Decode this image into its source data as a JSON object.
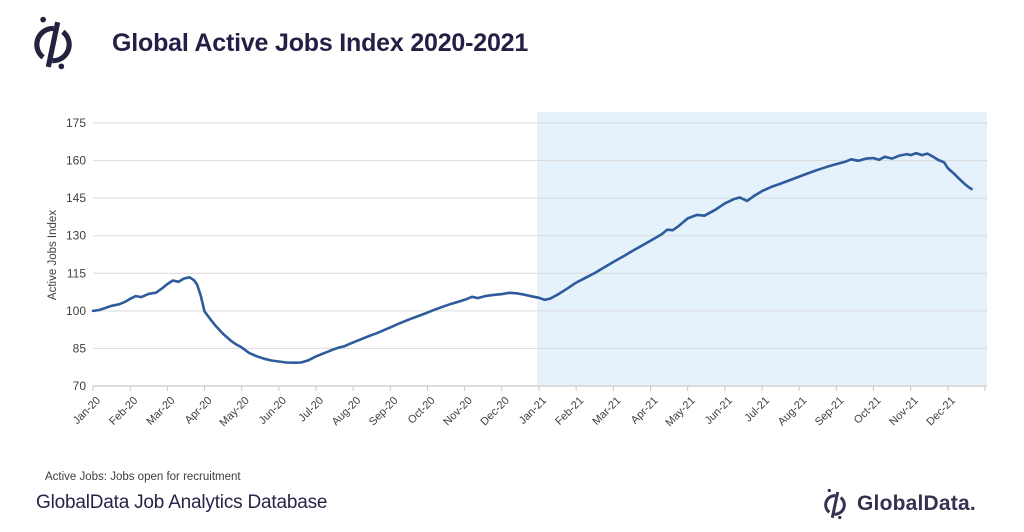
{
  "header": {
    "title": "Global Active Jobs Index 2020-2021"
  },
  "footer": {
    "note": "Active Jobs: Jobs open for recruitment",
    "source": "GlobalData Job Analytics Database",
    "brand": "GlobalData."
  },
  "icons": {
    "header_logo": "globaldata-compass-icon",
    "footer_logo": "globaldata-compass-icon"
  },
  "colors": {
    "line": "#2e5b9c",
    "highlight": "#e5f2fb",
    "grid": "#d9d9d9",
    "axis": "#c6c6c6",
    "axis_text": "#3f3f3f",
    "title_text": "#241f45",
    "brand_text": "#343250"
  },
  "chart_data": {
    "type": "line",
    "title": "Global Active Jobs Index 2020-2021",
    "xlabel": "",
    "ylabel": "Active Jobs Index",
    "ylim": [
      70,
      175
    ],
    "yticks": [
      70,
      85,
      100,
      115,
      130,
      145,
      160,
      175
    ],
    "grid": "horizontal",
    "legend": "none",
    "categories": [
      "Jan-20",
      "Feb-20",
      "Mar-20",
      "Apr-20",
      "May-20",
      "Jun-20",
      "Jul-20",
      "Aug-20",
      "Sep-20",
      "Oct-20",
      "Nov-20",
      "Dec-20",
      "Jan-21",
      "Feb-21",
      "Mar-21",
      "Apr-21",
      "May-21",
      "Jun-21",
      "Jul-21",
      "Aug-21",
      "Sep-21",
      "Oct-21",
      "Nov-21",
      "Dec-21"
    ],
    "highlight_region": {
      "from_month": 12,
      "to_month": 24,
      "color": "#e5f2fb"
    },
    "monthly_values": {
      "Jan-20": 100,
      "Feb-20": 105,
      "Mar-20": 111,
      "Apr-20": 100,
      "May-20": 85,
      "Jun-20": 80,
      "Jul-20": 82,
      "Aug-20": 87,
      "Sep-20": 93,
      "Oct-20": 99,
      "Nov-20": 104,
      "Dec-20": 107,
      "Jan-21": 105,
      "Feb-21": 111,
      "Mar-21": 120,
      "Apr-21": 128,
      "May-21": 137,
      "Jun-21": 143,
      "Jul-21": 148,
      "Aug-21": 154,
      "Sep-21": 159,
      "Oct-21": 161,
      "Nov-21": 162,
      "Dec-21": 157
    },
    "series": [
      {
        "name": "Active Jobs Index",
        "points": [
          [
            0,
            100
          ],
          [
            0.15,
            100.3
          ],
          [
            0.3,
            101
          ],
          [
            0.5,
            102
          ],
          [
            0.7,
            102.6
          ],
          [
            0.85,
            103.5
          ],
          [
            1,
            104.8
          ],
          [
            1.15,
            105.9
          ],
          [
            1.3,
            105.5
          ],
          [
            1.5,
            106.8
          ],
          [
            1.7,
            107.3
          ],
          [
            1.85,
            108.9
          ],
          [
            2,
            110.7
          ],
          [
            2.15,
            112.1
          ],
          [
            2.3,
            111.6
          ],
          [
            2.45,
            112.9
          ],
          [
            2.6,
            113.4
          ],
          [
            2.72,
            112.2
          ],
          [
            2.8,
            110.5
          ],
          [
            2.9,
            106
          ],
          [
            3,
            99.8
          ],
          [
            3.15,
            96.8
          ],
          [
            3.3,
            94
          ],
          [
            3.5,
            90.8
          ],
          [
            3.7,
            88.2
          ],
          [
            3.85,
            86.6
          ],
          [
            4,
            85.4
          ],
          [
            4.2,
            83.2
          ],
          [
            4.4,
            81.9
          ],
          [
            4.6,
            80.9
          ],
          [
            4.8,
            80.2
          ],
          [
            5,
            79.8
          ],
          [
            5.2,
            79.4
          ],
          [
            5.4,
            79.3
          ],
          [
            5.6,
            79.4
          ],
          [
            5.8,
            80.3
          ],
          [
            6,
            81.8
          ],
          [
            6.2,
            83
          ],
          [
            6.4,
            84.2
          ],
          [
            6.6,
            85.3
          ],
          [
            6.75,
            85.8
          ],
          [
            6.9,
            86.8
          ],
          [
            7,
            87.4
          ],
          [
            7.2,
            88.6
          ],
          [
            7.4,
            89.8
          ],
          [
            7.6,
            90.9
          ],
          [
            7.8,
            92.1
          ],
          [
            8,
            93.4
          ],
          [
            8.2,
            94.7
          ],
          [
            8.4,
            95.9
          ],
          [
            8.6,
            97.1
          ],
          [
            8.8,
            98.2
          ],
          [
            9,
            99.3
          ],
          [
            9.2,
            100.5
          ],
          [
            9.4,
            101.6
          ],
          [
            9.6,
            102.6
          ],
          [
            9.8,
            103.5
          ],
          [
            10,
            104.4
          ],
          [
            10.2,
            105.6
          ],
          [
            10.35,
            105.1
          ],
          [
            10.55,
            105.9
          ],
          [
            10.75,
            106.3
          ],
          [
            11,
            106.7
          ],
          [
            11.2,
            107.2
          ],
          [
            11.4,
            107
          ],
          [
            11.6,
            106.5
          ],
          [
            11.8,
            105.8
          ],
          [
            12,
            105.2
          ],
          [
            12.15,
            104.4
          ],
          [
            12.3,
            104.9
          ],
          [
            12.5,
            106.5
          ],
          [
            12.75,
            108.8
          ],
          [
            13,
            111.3
          ],
          [
            13.25,
            113.2
          ],
          [
            13.5,
            115.1
          ],
          [
            13.75,
            117.3
          ],
          [
            14,
            119.5
          ],
          [
            14.25,
            121.6
          ],
          [
            14.5,
            123.8
          ],
          [
            14.75,
            125.9
          ],
          [
            15,
            128
          ],
          [
            15.3,
            130.6
          ],
          [
            15.45,
            132.4
          ],
          [
            15.6,
            132.2
          ],
          [
            15.75,
            133.8
          ],
          [
            16,
            136.9
          ],
          [
            16.25,
            138.3
          ],
          [
            16.45,
            138
          ],
          [
            16.75,
            140.4
          ],
          [
            17,
            142.9
          ],
          [
            17.25,
            144.6
          ],
          [
            17.4,
            145.3
          ],
          [
            17.6,
            143.9
          ],
          [
            17.8,
            146
          ],
          [
            18,
            147.8
          ],
          [
            18.25,
            149.5
          ],
          [
            18.5,
            150.8
          ],
          [
            18.75,
            152.2
          ],
          [
            19,
            153.6
          ],
          [
            19.25,
            155
          ],
          [
            19.5,
            156.3
          ],
          [
            19.75,
            157.5
          ],
          [
            20,
            158.6
          ],
          [
            20.25,
            159.6
          ],
          [
            20.4,
            160.5
          ],
          [
            20.6,
            159.9
          ],
          [
            20.8,
            160.8
          ],
          [
            21,
            161
          ],
          [
            21.15,
            160.3
          ],
          [
            21.3,
            161.5
          ],
          [
            21.5,
            160.8
          ],
          [
            21.7,
            162
          ],
          [
            21.9,
            162.6
          ],
          [
            22,
            162.2
          ],
          [
            22.15,
            163
          ],
          [
            22.3,
            162.2
          ],
          [
            22.45,
            162.8
          ],
          [
            22.6,
            161.6
          ],
          [
            22.75,
            160.2
          ],
          [
            22.9,
            159.3
          ],
          [
            23,
            157
          ],
          [
            23.15,
            155
          ],
          [
            23.3,
            152.8
          ],
          [
            23.45,
            150.7
          ],
          [
            23.55,
            149.5
          ],
          [
            23.64,
            148.6
          ]
        ]
      }
    ]
  }
}
